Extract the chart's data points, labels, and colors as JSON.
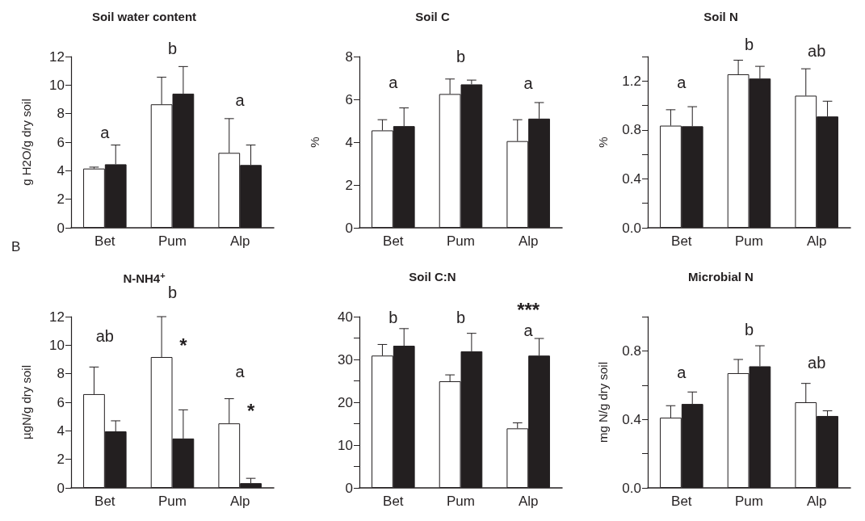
{
  "chart_data": [
    {
      "type": "bar",
      "title": "Soil water content",
      "ylabel": "g H2O/g dry soil",
      "categories": [
        "Bet",
        "Pum",
        "Alp"
      ],
      "ylim": [
        0,
        12
      ],
      "yticks": [
        0,
        2,
        4,
        6,
        8,
        10,
        12
      ],
      "series": [
        {
          "color": "#ffffff",
          "values": [
            4.15,
            8.65,
            5.25
          ],
          "errors": [
            [
              4.15,
              4.25
            ],
            [
              8.65,
              10.55
            ],
            [
              5.25,
              7.65
            ]
          ]
        },
        {
          "color": "#231f20",
          "values": [
            4.45,
            9.4,
            4.4
          ],
          "errors": [
            [
              4.45,
              5.8
            ],
            [
              9.4,
              11.3
            ],
            [
              4.4,
              5.8
            ]
          ]
        }
      ],
      "annotations": [
        "a",
        "b",
        "a",
        "B"
      ]
    },
    {
      "type": "bar",
      "title": "Soil C",
      "ylabel": "%",
      "categories": [
        "Bet",
        "Pum",
        "Alp"
      ],
      "ylim": [
        0,
        8
      ],
      "yticks": [
        0,
        2,
        4,
        6,
        8
      ],
      "series": [
        {
          "color": "#ffffff",
          "values": [
            4.55,
            6.25,
            4.05
          ],
          "errors": [
            [
              4.55,
              5.05
            ],
            [
              6.25,
              6.95
            ],
            [
              4.05,
              5.05
            ]
          ]
        },
        {
          "color": "#231f20",
          "values": [
            4.75,
            6.7,
            5.1
          ],
          "errors": [
            [
              4.75,
              5.6
            ],
            [
              6.7,
              6.9
            ],
            [
              5.1,
              5.85
            ]
          ]
        }
      ],
      "annotations": [
        "a",
        "b",
        "a"
      ]
    },
    {
      "type": "bar",
      "title": "Soil N",
      "ylabel": "%",
      "categories": [
        "Bet",
        "Pum",
        "Alp"
      ],
      "ylim": [
        0,
        1.4
      ],
      "yticks": [
        {
          "value": 0,
          "label": "0.0"
        },
        {
          "value": 0.2,
          "label": null
        },
        {
          "value": 0.4,
          "label": "0.4"
        },
        {
          "value": 0.6,
          "label": null
        },
        {
          "value": 0.8,
          "label": "0.8"
        },
        {
          "value": 1.0,
          "label": null
        },
        {
          "value": 1.2,
          "label": "1.2"
        },
        {
          "value": 1.4,
          "label": null
        }
      ],
      "series": [
        {
          "color": "#ffffff",
          "values": [
            0.835,
            1.255,
            1.08
          ],
          "errors": [
            [
              0.835,
              0.965
            ],
            [
              1.255,
              1.37
            ],
            [
              1.08,
              1.3
            ]
          ]
        },
        {
          "color": "#231f20",
          "values": [
            0.83,
            1.22,
            0.91
          ],
          "errors": [
            [
              0.83,
              0.99
            ],
            [
              1.22,
              1.32
            ],
            [
              0.91,
              1.035
            ]
          ]
        }
      ],
      "annotations": [
        "a",
        "b",
        "ab"
      ]
    },
    {
      "type": "bar",
      "title": "N-NH4$^{+}$",
      "ylabel": "µgN/g dry soil",
      "categories": [
        "Bet",
        "Pum",
        "Alp"
      ],
      "ylim": [
        0,
        12
      ],
      "yticks": [
        0,
        2,
        4,
        6,
        8,
        10,
        12
      ],
      "series": [
        {
          "color": "#ffffff",
          "values": [
            6.57,
            9.17,
            4.52
          ],
          "errors": [
            [
              6.57,
              8.47
            ],
            [
              9.17,
              12.0
            ],
            [
              4.52,
              6.25
            ]
          ]
        },
        {
          "color": "#231f20",
          "values": [
            3.96,
            3.46,
            0.33
          ],
          "errors": [
            [
              3.96,
              4.7
            ],
            [
              3.46,
              5.47
            ],
            [
              0.33,
              0.67
            ]
          ]
        }
      ],
      "annotations": [
        "ab",
        "b",
        "*",
        "a",
        "*"
      ]
    },
    {
      "type": "bar",
      "title": "Soil C:N",
      "categories": [
        "Bet",
        "Pum",
        "Alp"
      ],
      "ylim": [
        0,
        40
      ],
      "yticks": [
        0,
        {
          "value": 5,
          "label": null
        },
        10,
        {
          "value": 15,
          "label": null
        },
        20,
        {
          "value": 25,
          "label": null
        },
        30,
        {
          "value": 35,
          "label": null
        },
        40
      ],
      "series": [
        {
          "color": "#ffffff",
          "values": [
            30.9,
            24.9,
            13.9
          ],
          "errors": [
            [
              30.9,
              33.5
            ],
            [
              24.9,
              26.4
            ],
            [
              13.9,
              15.2
            ]
          ]
        },
        {
          "color": "#231f20",
          "values": [
            33.2,
            31.9,
            30.9
          ],
          "errors": [
            [
              33.2,
              37.2
            ],
            [
              31.9,
              36.1
            ],
            [
              30.9,
              34.9
            ]
          ]
        }
      ],
      "annotations": [
        "b",
        "b",
        "a",
        "***"
      ]
    },
    {
      "type": "bar",
      "title": "Microbial N",
      "ylabel": "mg N/g dry soil",
      "categories": [
        "Bet",
        "Pum",
        "Alp"
      ],
      "ylim": [
        0,
        1.0
      ],
      "yticks": [
        {
          "value": 0,
          "label": "0.0"
        },
        {
          "value": 0.2,
          "label": null
        },
        {
          "value": 0.4,
          "label": "0.4"
        },
        {
          "value": 0.6,
          "label": null
        },
        {
          "value": 0.8,
          "label": "0.8"
        },
        {
          "value": 1.0,
          "label": null
        }
      ],
      "series": [
        {
          "color": "#ffffff",
          "values": [
            0.41,
            0.67,
            0.5
          ],
          "errors": [
            [
              0.41,
              0.48
            ],
            [
              0.67,
              0.75
            ],
            [
              0.5,
              0.61
            ]
          ]
        },
        {
          "color": "#231f20",
          "values": [
            0.49,
            0.71,
            0.42
          ],
          "errors": [
            [
              0.49,
              0.56
            ],
            [
              0.71,
              0.83
            ],
            [
              0.42,
              0.45
            ]
          ]
        }
      ],
      "annotations": [
        "a",
        "b",
        "ab"
      ]
    }
  ]
}
